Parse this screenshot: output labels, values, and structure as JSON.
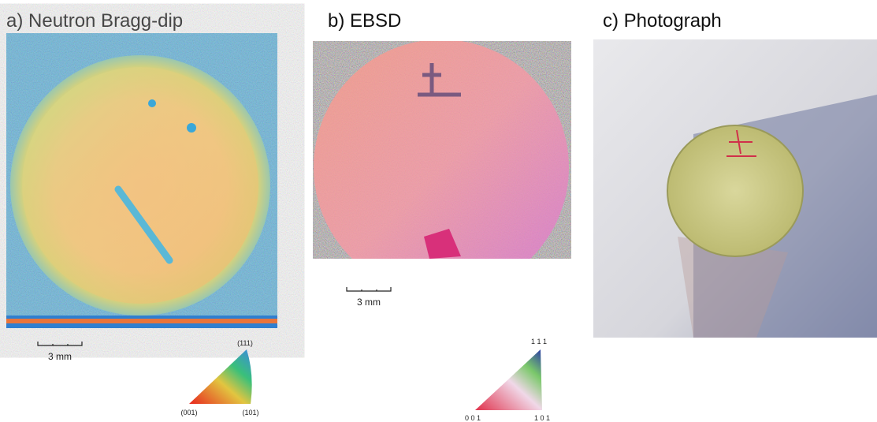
{
  "panels": [
    {
      "title": "a) Neutron Bragg-dip",
      "scale_bar": "3 mm",
      "legend": {
        "top": "(111)",
        "left": "(001)",
        "right": "(101)"
      }
    },
    {
      "title": "b) EBSD",
      "scale_bar": "3 mm",
      "legend": {
        "top": "1 1 1",
        "left": "0 0 1",
        "right": "1 0 1"
      }
    },
    {
      "title": "c) Photograph"
    }
  ]
}
